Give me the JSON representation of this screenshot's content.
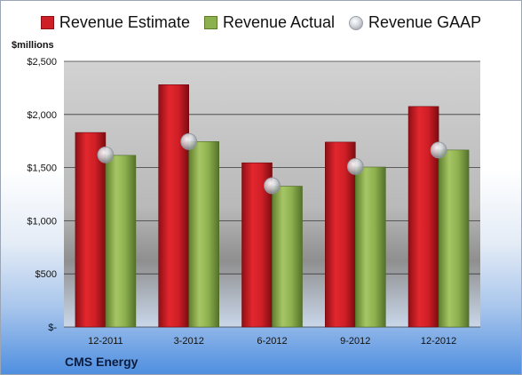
{
  "chart_data": {
    "type": "bar",
    "categories": [
      "12-2011",
      "3-2012",
      "6-2012",
      "9-2012",
      "12-2012"
    ],
    "series": [
      {
        "name": "Revenue Estimate",
        "values": [
          1830,
          2280,
          1545,
          1740,
          2075
        ],
        "color": "#cf1f26"
      },
      {
        "name": "Revenue Actual",
        "values": [
          1615,
          1745,
          1325,
          1505,
          1665
        ],
        "color": "#8db04e"
      },
      {
        "name": "Revenue GAAP",
        "values": [
          1620,
          1745,
          1330,
          1510,
          1665
        ],
        "color": "#b8bcc2",
        "marker": "circle"
      }
    ],
    "ylim": [
      0,
      2500
    ],
    "yticks": [
      "$-",
      "$500",
      "$1,000",
      "$1,500",
      "$2,000",
      "$2,500"
    ],
    "ytick_values": [
      0,
      500,
      1000,
      1500,
      2000,
      2500
    ],
    "ylabel": "$millions",
    "grid": true,
    "legend": "top"
  },
  "legend": {
    "estimate": "Revenue Estimate",
    "actual": "Revenue Actual",
    "gaap": "Revenue GAAP"
  },
  "unit_label": "$millions",
  "company": "CMS Energy"
}
